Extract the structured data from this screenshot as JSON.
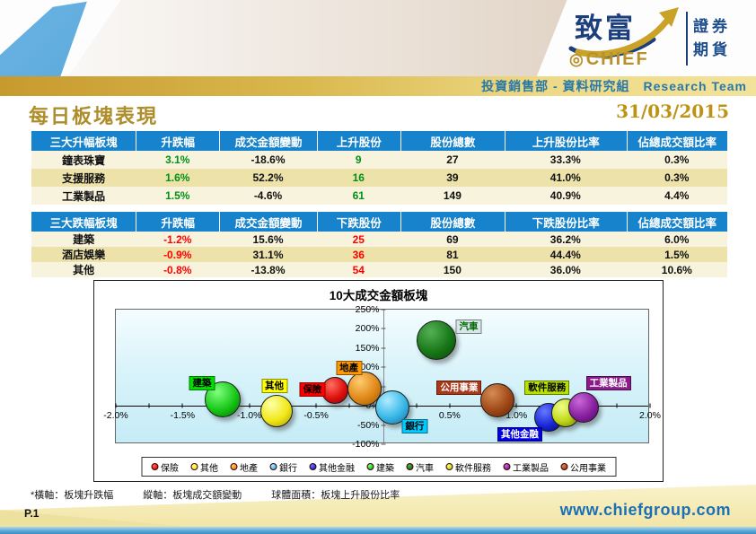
{
  "header": {
    "logo": {
      "zhifu": "致富",
      "chief": "CHIEF",
      "seal": "◎",
      "securities": "證券",
      "futures": "期貨"
    },
    "dept_line": "投資銷售部 - 資料研究組　Research Team"
  },
  "page": {
    "title": "每日板塊表現",
    "date": "31/03/2015",
    "footnote": "*橫軸：板塊升跌幅　　　縱軸：板塊成交額變動　　　球體面積：板塊上升股份比率",
    "page_no": "P.1",
    "website": "www.chiefgroup.com"
  },
  "gain_table": {
    "headers": [
      "三大升幅板塊",
      "升跌幅",
      "成交金額變動",
      "上升股份",
      "股份總數",
      "上升股份比率",
      "佔總成交額比率"
    ],
    "accent_color": "#009018",
    "accent_cols": [
      1,
      3
    ],
    "rows": [
      [
        "鐘表珠寶",
        "3.1%",
        "-18.6%",
        "9",
        "27",
        "33.3%",
        "0.3%"
      ],
      [
        "支援服務",
        "1.6%",
        "52.2%",
        "16",
        "39",
        "41.0%",
        "0.3%"
      ],
      [
        "工業製品",
        "1.5%",
        "-4.6%",
        "61",
        "149",
        "40.9%",
        "4.4%"
      ]
    ]
  },
  "loss_table": {
    "headers": [
      "三大跌幅板塊",
      "升跌幅",
      "成交金額變動",
      "下跌股份",
      "股份總數",
      "下跌股份比率",
      "佔總成交額比率"
    ],
    "accent_color": "#ff0000",
    "accent_cols": [
      1,
      3
    ],
    "rows": [
      [
        "建築",
        "-1.2%",
        "15.6%",
        "25",
        "69",
        "36.2%",
        "6.0%"
      ],
      [
        "酒店娛樂",
        "-0.9%",
        "31.1%",
        "36",
        "81",
        "44.4%",
        "1.5%"
      ],
      [
        "其他",
        "-0.8%",
        "-13.8%",
        "54",
        "150",
        "36.0%",
        "10.6%"
      ]
    ]
  },
  "chart_data": {
    "type": "scatter",
    "title": "10大成交金額板塊",
    "x_axis_note": "板塊升跌幅",
    "y_axis_note": "板塊成交額變動",
    "size_note": "板塊上升股份比率",
    "x_range": [
      -2.0,
      2.0
    ],
    "y_range": [
      -100,
      250
    ],
    "x_ticks": [
      {
        "label": "-2.0%",
        "v": -2.0
      },
      {
        "label": "-1.5%",
        "v": -1.5
      },
      {
        "label": "-1.0%",
        "v": -1.0
      },
      {
        "label": "-0.5%",
        "v": -0.5
      },
      {
        "label": "0.0%",
        "v": 0.0
      },
      {
        "label": "0.5%",
        "v": 0.5
      },
      {
        "label": "1.0%",
        "v": 1.0
      },
      {
        "label": "1.5%",
        "v": 1.5
      },
      {
        "label": "2.0%",
        "v": 2.0
      }
    ],
    "y_ticks": [
      {
        "label": "250%",
        "v": 250
      },
      {
        "label": "200%",
        "v": 200
      },
      {
        "label": "150%",
        "v": 150
      },
      {
        "label": "100%",
        "v": 100
      },
      {
        "label": "50%",
        "v": 50
      },
      {
        "label": "0%",
        "v": 0
      },
      {
        "label": "-50%",
        "v": -50
      },
      {
        "label": "-100%",
        "v": -100
      }
    ],
    "grid": false,
    "legend_position": "bottom",
    "series": [
      {
        "name": "保險",
        "x": -0.36,
        "y": 40,
        "r": 15,
        "base": "#e01010",
        "light": "#ff7060",
        "dark": "#8b0000",
        "label_bg": "#ff0000",
        "label_text": "#000000",
        "label_dx": -25,
        "label_dy": -1
      },
      {
        "name": "其他",
        "x": -0.8,
        "y": -13.8,
        "r": 18,
        "base": "#f0e818",
        "light": "#ffffa8",
        "dark": "#a89800",
        "label_bg": "#ffff00",
        "label_text": "#000000",
        "label_dx": -2,
        "label_dy": -28
      },
      {
        "name": "地產",
        "x": -0.14,
        "y": 45,
        "r": 19,
        "base": "#e08818",
        "light": "#ffcc70",
        "dark": "#9c5a00",
        "label_bg": "#ff9900",
        "label_text": "#000000",
        "label_dx": -17,
        "label_dy": -23
      },
      {
        "name": "銀行",
        "x": 0.07,
        "y": -5,
        "r": 19,
        "base": "#38b8e8",
        "light": "#b0ecff",
        "dark": "#176f9c",
        "label_bg": "#00ccff",
        "label_text": "#000000",
        "label_dx": 25,
        "label_dy": 21
      },
      {
        "name": "其他金融",
        "x": 1.24,
        "y": -30,
        "r": 16,
        "base": "#1828d8",
        "light": "#6678ff",
        "dark": "#000878",
        "label_bg": "#0000e0",
        "label_text": "#ffffff",
        "label_dx": -32,
        "label_dy": 19
      },
      {
        "name": "建築",
        "x": -1.2,
        "y": 15.6,
        "r": 20,
        "base": "#18c818",
        "light": "#80ff80",
        "dark": "#006e00",
        "label_bg": "#00e000",
        "label_text": "#000000",
        "label_dx": -23,
        "label_dy": -18
      },
      {
        "name": "汽車",
        "x": 0.4,
        "y": 170,
        "r": 22,
        "base": "#187818",
        "light": "#55b055",
        "dark": "#0a420a",
        "label_bg": "#d9e6e9",
        "label_text": "#006600",
        "label_dx": 36,
        "label_dy": -15
      },
      {
        "name": "軟件服務",
        "x": 1.37,
        "y": -18,
        "r": 16,
        "base": "#c0d818",
        "light": "#efff88",
        "dark": "#6f8000",
        "label_bg": "#b8e000",
        "label_text": "#000000",
        "label_dx": -21,
        "label_dy": -28
      },
      {
        "name": "工業製品",
        "x": 1.5,
        "y": -4.6,
        "r": 17,
        "base": "#8820a0",
        "light": "#c968d8",
        "dark": "#4c0860",
        "label_bg": "#8b1a8b",
        "label_text": "#ffffff",
        "label_dx": 28,
        "label_dy": -27
      },
      {
        "name": "公用事業",
        "x": 0.86,
        "y": 15,
        "r": 19,
        "base": "#a04818",
        "light": "#d68c52",
        "dark": "#5c2606",
        "label_bg": "#a83818",
        "label_text": "#ffffff",
        "label_dx": -43,
        "label_dy": -14
      }
    ]
  }
}
